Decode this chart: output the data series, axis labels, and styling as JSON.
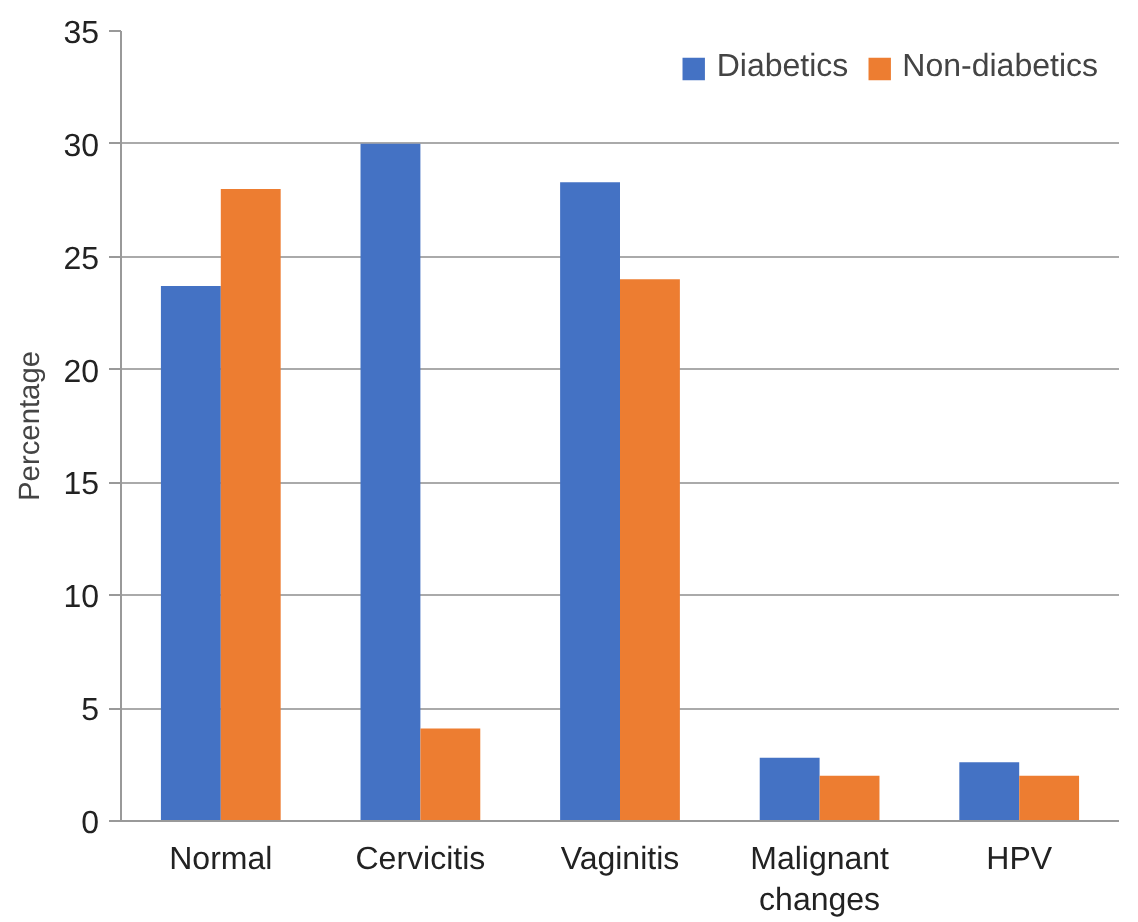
{
  "chart_data": {
    "type": "bar",
    "ylabel": "Percentage",
    "categories": [
      "Normal",
      "Cervicitis",
      "Vaginitis",
      "Malignant changes",
      "HPV"
    ],
    "series": [
      {
        "name": "Diabetics",
        "color": "#4472c4",
        "values": [
          23.7,
          30.0,
          28.3,
          2.8,
          2.6
        ]
      },
      {
        "name": "Non-diabetics",
        "color": "#ed7d31",
        "values": [
          28.0,
          4.1,
          24.0,
          2.0,
          2.0
        ]
      }
    ],
    "ylim": [
      0,
      35
    ],
    "yticks": [
      0,
      5,
      10,
      15,
      20,
      25,
      30,
      35
    ],
    "grid": "y",
    "legend": "top right"
  }
}
